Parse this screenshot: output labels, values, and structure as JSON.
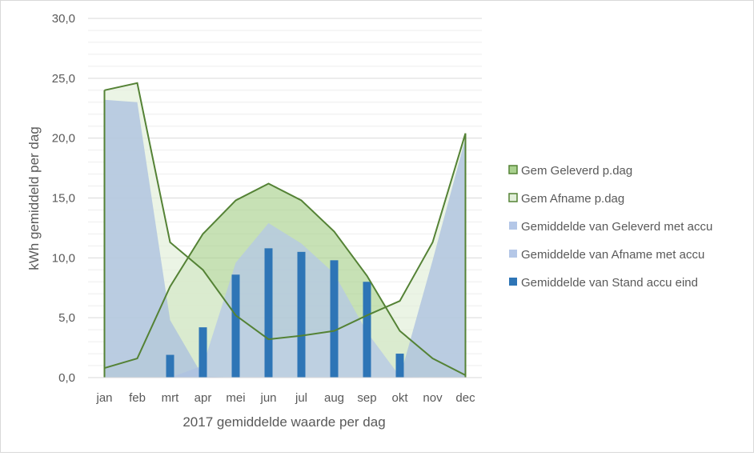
{
  "chart_data": {
    "type": "area",
    "title": "",
    "xlabel": "2017 gemiddelde waarde per dag",
    "ylabel": "kWh gemiddeld per dag",
    "ylim": [
      0,
      30
    ],
    "y_ticks": [
      "0,0",
      "5,0",
      "10,0",
      "15,0",
      "20,0",
      "25,0",
      "30,0"
    ],
    "y_tick_values": [
      0,
      5,
      10,
      15,
      20,
      25,
      30
    ],
    "minor_grid_step": 1,
    "categories": [
      "jan",
      "feb",
      "mrt",
      "apr",
      "mei",
      "jun",
      "jul",
      "aug",
      "sep",
      "okt",
      "nov",
      "dec"
    ],
    "legend_position": "right",
    "series": [
      {
        "name": "Gem Geleverd p.dag",
        "kind": "area",
        "fill": "#a9d18e",
        "fill_opacity": 0.65,
        "stroke": "#548235",
        "values": [
          0.8,
          1.6,
          7.6,
          12.0,
          14.8,
          16.2,
          14.8,
          12.2,
          8.5,
          3.9,
          1.6,
          0.2
        ]
      },
      {
        "name": "Gem Afname p.dag",
        "kind": "area",
        "fill": "#e2efda",
        "fill_opacity": 0.7,
        "stroke": "#548235",
        "values": [
          24.0,
          24.6,
          11.3,
          9.0,
          5.2,
          3.2,
          3.5,
          3.9,
          5.2,
          6.4,
          11.3,
          20.4
        ]
      },
      {
        "name": "Gemiddelde van Geleverd met accu",
        "kind": "area",
        "fill": "#b4c7e7",
        "fill_opacity": 0.75,
        "stroke": "none",
        "values": [
          0.0,
          0.0,
          0.0,
          1.0,
          9.6,
          12.9,
          11.2,
          8.7,
          3.8,
          0.1,
          0.0,
          0.0
        ]
      },
      {
        "name": "Gemiddelde van Afname met accu",
        "kind": "area",
        "fill": "#a9bfdf",
        "fill_opacity": 0.75,
        "stroke": "none",
        "values": [
          23.2,
          23.0,
          4.8,
          0.1,
          0.0,
          0.0,
          0.0,
          0.0,
          0.0,
          0.0,
          9.8,
          20.0
        ]
      },
      {
        "name": "Gemiddelde van Stand accu eind",
        "kind": "bar",
        "fill": "#2e75b6",
        "stroke": "none",
        "values": [
          0.0,
          0.0,
          1.9,
          4.2,
          8.6,
          10.8,
          10.5,
          9.8,
          8.0,
          2.0,
          0.0,
          0.0
        ]
      }
    ]
  }
}
